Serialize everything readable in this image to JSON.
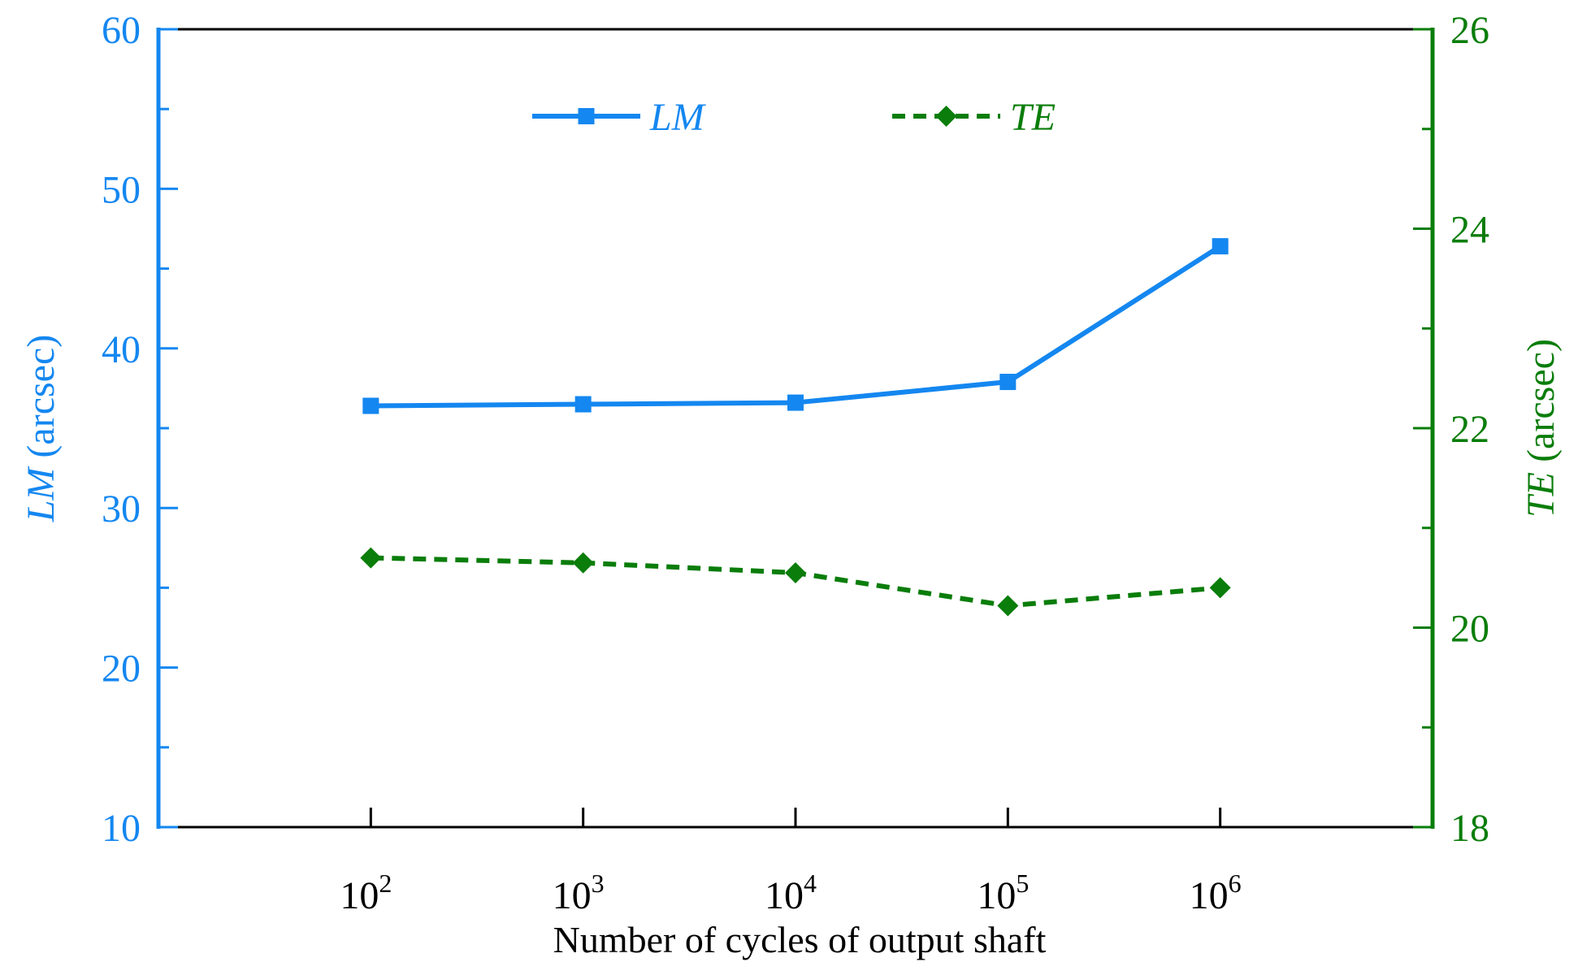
{
  "chart_data": {
    "type": "line",
    "title": "",
    "xlabel": "Number of cycles of output shaft",
    "x_scale": "log",
    "x_tick_base": "10",
    "x_tick_exponents": [
      "2",
      "3",
      "4",
      "5",
      "6"
    ],
    "x": [
      100,
      1000,
      10000,
      100000,
      1000000
    ],
    "y_left": {
      "label_var": "LM",
      "label_unit": " (arcsec)",
      "ylim": [
        10,
        60
      ],
      "ticks": [
        "10",
        "20",
        "30",
        "40",
        "50",
        "60"
      ],
      "color": "#1487f0"
    },
    "y_right": {
      "label_var": "TE",
      "label_unit": " (arcsec)",
      "ylim": [
        18,
        26
      ],
      "ticks": [
        "18",
        "20",
        "22",
        "24",
        "26"
      ],
      "color": "#0a7d0a"
    },
    "series": [
      {
        "name": "LM",
        "axis": "left",
        "style": "solid",
        "marker": "square",
        "color": "#1487f0",
        "values": [
          36.4,
          36.5,
          36.6,
          37.9,
          46.4
        ]
      },
      {
        "name": "TE",
        "axis": "right",
        "style": "dashed",
        "marker": "diamond",
        "color": "#0a7d0a",
        "values": [
          20.7,
          20.65,
          20.55,
          20.22,
          20.4
        ]
      }
    ],
    "legend": {
      "placement": "top-center",
      "entries": [
        "LM",
        "TE"
      ]
    }
  }
}
